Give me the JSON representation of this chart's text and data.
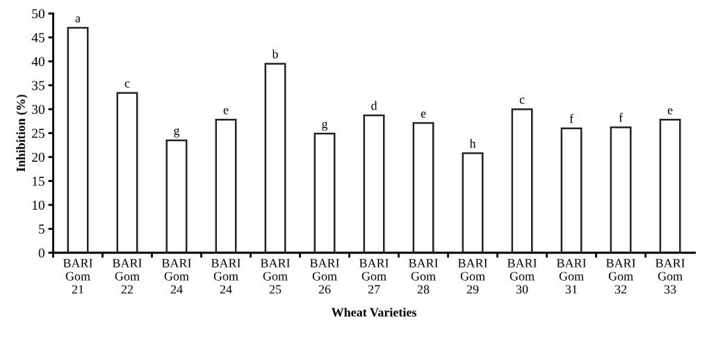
{
  "chart_data": {
    "type": "bar",
    "xlabel": "Wheat Varieties",
    "ylabel": "Inhibition (%)",
    "categories": [
      "BARI Gom 21",
      "BARI Gom 22",
      "BARI Gom 24",
      "BARI Gom 24",
      "BARI Gom 25",
      "BARI Gom 26",
      "BARI Gom 27",
      "BARI Gom 28",
      "BARI Gom 29",
      "BARI Gom 30",
      "BARI Gom 31",
      "BARI Gom 32",
      "BARI Gom 33"
    ],
    "values": [
      47,
      33.4,
      23.5,
      27.8,
      39.5,
      24.9,
      28.7,
      27.1,
      20.8,
      30.0,
      26.0,
      26.2,
      27.8
    ],
    "value_labels": [
      "a",
      "c",
      "g",
      "e",
      "b",
      "g",
      "d",
      "e",
      "h",
      "c",
      "f",
      "f",
      "e"
    ],
    "color": "#ffffff",
    "ylim": [
      0,
      50
    ],
    "yticks": [
      0,
      5,
      10,
      15,
      20,
      25,
      30,
      35,
      40,
      45,
      50
    ],
    "grid": false,
    "legend": false
  }
}
